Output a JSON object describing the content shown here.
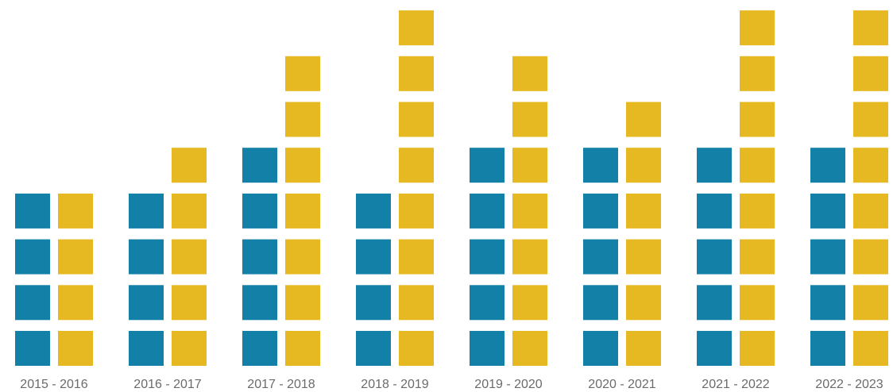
{
  "chart_data": {
    "type": "waffle",
    "categories": [
      "2015 - 2016",
      "2016 - 2017",
      "2017 - 2018",
      "2018 - 2019",
      "2019 - 2020",
      "2020 - 2021",
      "2021 - 2022",
      "2022 - 2023"
    ],
    "series": [
      {
        "color": "#1380a8",
        "values": [
          4,
          4,
          5,
          4,
          5,
          5,
          5,
          5
        ]
      },
      {
        "color": "#e6b821",
        "values": [
          4,
          5,
          7,
          8,
          7,
          6,
          8,
          8
        ]
      }
    ]
  }
}
